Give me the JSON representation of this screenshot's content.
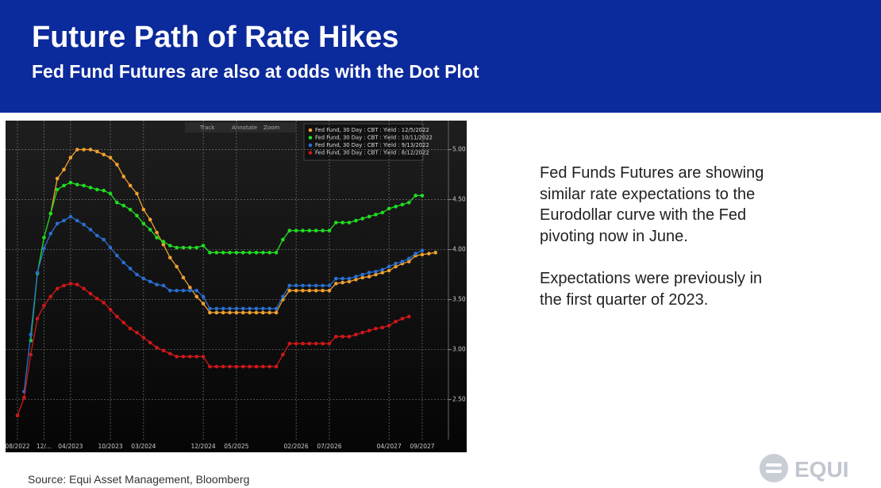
{
  "header": {
    "title": "Future Path of Rate Hikes",
    "subtitle": "Fed Fund Futures are also at odds with the Dot Plot"
  },
  "toolbar": [
    "Track",
    "Annotate",
    "Zoom"
  ],
  "chart_data": {
    "type": "line",
    "categories": [
      "08/2022",
      null,
      null,
      null,
      "12/...",
      null,
      null,
      null,
      "04/2023",
      null,
      null,
      null,
      null,
      null,
      "10/2023",
      null,
      null,
      null,
      null,
      "03/2024",
      null,
      null,
      null,
      null,
      null,
      null,
      null,
      null,
      "12/2024",
      null,
      null,
      null,
      null,
      "05/2025",
      null,
      null,
      null,
      null,
      null,
      null,
      null,
      null,
      "02/2026",
      null,
      null,
      null,
      null,
      "07/2026",
      null,
      null,
      null,
      null,
      null,
      null,
      null,
      null,
      "04/2027",
      null,
      null,
      null,
      null,
      "09/2027",
      null,
      null
    ],
    "ylim": [
      2.1,
      5.25
    ],
    "yticks": [
      {
        "value": 2.5,
        "label": "2.50"
      },
      {
        "value": 3,
        "label": "3.00"
      },
      {
        "value": 3.5,
        "label": "3.50"
      },
      {
        "value": 4,
        "label": "4.00"
      },
      {
        "value": 4.5,
        "label": "4.50"
      },
      {
        "value": 5,
        "label": "5.00"
      }
    ],
    "grid": true,
    "legend": "top-right",
    "series": [
      {
        "name": "Fed Fund, 30 Day : CBT : Yield : 12/5/2022",
        "color": "#f0a030",
        "values": [
          null,
          null,
          null,
          null,
          null,
          4.36,
          4.71,
          4.8,
          4.92,
          5.0,
          5.0,
          5.0,
          4.98,
          4.95,
          4.92,
          4.85,
          4.73,
          4.64,
          4.56,
          4.4,
          4.3,
          4.17,
          4.05,
          3.92,
          3.83,
          3.72,
          3.62,
          3.53,
          3.46,
          3.37,
          3.37,
          3.37,
          3.37,
          3.37,
          3.37,
          3.37,
          3.37,
          3.37,
          3.37,
          3.37,
          3.5,
          3.59,
          3.59,
          3.59,
          3.59,
          3.59,
          3.59,
          3.59,
          3.66,
          3.67,
          3.68,
          3.7,
          3.72,
          3.73,
          3.75,
          3.77,
          3.79,
          3.83,
          3.86,
          3.88,
          3.94,
          3.95,
          3.96,
          3.97
        ]
      },
      {
        "name": "Fed Fund, 30 Day : CBT : Yield : 10/11/2022",
        "color": "#22dd22",
        "values": [
          null,
          null,
          3.09,
          3.76,
          4.12,
          4.36,
          4.6,
          4.64,
          4.67,
          4.65,
          4.64,
          4.62,
          4.6,
          4.59,
          4.56,
          4.47,
          4.44,
          4.4,
          4.34,
          4.26,
          4.2,
          4.12,
          4.08,
          4.04,
          4.02,
          4.02,
          4.02,
          4.02,
          4.04,
          3.97,
          3.97,
          3.97,
          3.97,
          3.97,
          3.97,
          3.97,
          3.97,
          3.97,
          3.97,
          3.97,
          4.1,
          4.19,
          4.19,
          4.19,
          4.19,
          4.19,
          4.19,
          4.19,
          4.27,
          4.27,
          4.27,
          4.29,
          4.31,
          4.33,
          4.35,
          4.37,
          4.41,
          4.43,
          4.45,
          4.47,
          4.54,
          4.54,
          null,
          null
        ]
      },
      {
        "name": "Fed Fund, 30 Day : CBT : Yield : 9/13/2022",
        "color": "#2a6fd0",
        "values": [
          null,
          2.58,
          3.15,
          3.77,
          4.01,
          4.16,
          4.26,
          4.29,
          4.33,
          4.29,
          4.25,
          4.2,
          4.14,
          4.1,
          4.02,
          3.94,
          3.87,
          3.81,
          3.75,
          3.71,
          3.68,
          3.65,
          3.64,
          3.59,
          3.59,
          3.59,
          3.59,
          3.59,
          3.53,
          3.41,
          3.41,
          3.41,
          3.41,
          3.41,
          3.41,
          3.41,
          3.41,
          3.41,
          3.41,
          3.41,
          3.53,
          3.64,
          3.64,
          3.64,
          3.64,
          3.64,
          3.64,
          3.64,
          3.71,
          3.71,
          3.71,
          3.73,
          3.75,
          3.77,
          3.78,
          3.8,
          3.83,
          3.86,
          3.88,
          3.91,
          3.96,
          3.99,
          null,
          null
        ]
      },
      {
        "name": "Fed Fund, 30 Day : CBT : Yield : 8/12/2022",
        "color": "#d01818",
        "values": [
          2.34,
          2.52,
          2.95,
          3.31,
          3.44,
          3.53,
          3.61,
          3.64,
          3.66,
          3.65,
          3.61,
          3.56,
          3.51,
          3.47,
          3.4,
          3.33,
          3.27,
          3.21,
          3.17,
          3.12,
          3.07,
          3.02,
          2.99,
          2.96,
          2.93,
          2.93,
          2.93,
          2.93,
          2.93,
          2.83,
          2.83,
          2.83,
          2.83,
          2.83,
          2.83,
          2.83,
          2.83,
          2.83,
          2.83,
          2.83,
          2.95,
          3.06,
          3.06,
          3.06,
          3.06,
          3.06,
          3.06,
          3.06,
          3.13,
          3.13,
          3.13,
          3.15,
          3.17,
          3.19,
          3.21,
          3.22,
          3.24,
          3.28,
          3.31,
          3.33,
          null,
          null,
          null,
          null
        ]
      }
    ]
  },
  "body": {
    "paragraphs": [
      {
        "lines": [
          "Fed Funds Futures are showing",
          "similar rate expectations to the",
          "Eurodollar curve with the Fed",
          "pivoting now in June."
        ]
      },
      {
        "lines": [
          "Expectations were previously in",
          "the first quarter of 2023."
        ]
      }
    ]
  },
  "footer": {
    "source": "Source:  Equi Asset Management, Bloomberg",
    "logo": "EQUI"
  }
}
